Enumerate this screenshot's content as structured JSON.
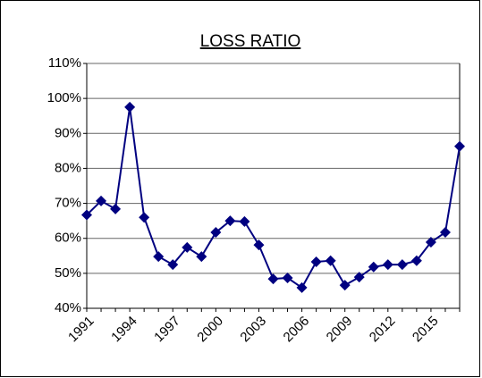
{
  "chart_data": {
    "type": "line",
    "title": "LOSS RATIO",
    "categories": [
      "1991",
      null,
      null,
      "1994",
      null,
      null,
      "1997",
      null,
      null,
      "2000",
      null,
      null,
      "2003",
      null,
      null,
      "2006",
      null,
      null,
      "2009",
      null,
      null,
      "2012",
      null,
      null,
      "2015",
      null,
      null
    ],
    "series": [
      {
        "color": "#000080",
        "values": [
          66.7,
          70.7,
          68.4,
          97.5,
          66,
          54.8,
          52.5,
          57.4,
          54.8,
          61.7,
          65,
          64.8,
          58.1,
          48.4,
          48.7,
          45.9,
          53.3,
          53.6,
          46.6,
          48.9,
          51.8,
          52.5,
          52.5,
          53.6,
          58.9,
          61.7,
          86.3
        ]
      }
    ],
    "ylim": [
      40,
      110
    ],
    "yticks": [
      {
        "value": 40,
        "label": "40%"
      },
      {
        "value": 50,
        "label": "50%"
      },
      {
        "value": 60,
        "label": "60%"
      },
      {
        "value": 70,
        "label": "70%"
      },
      {
        "value": 80,
        "label": "80%"
      },
      {
        "value": 90,
        "label": "90%"
      },
      {
        "value": 100,
        "label": "100%"
      },
      {
        "value": 110,
        "label": "110%"
      }
    ],
    "grid": true
  }
}
